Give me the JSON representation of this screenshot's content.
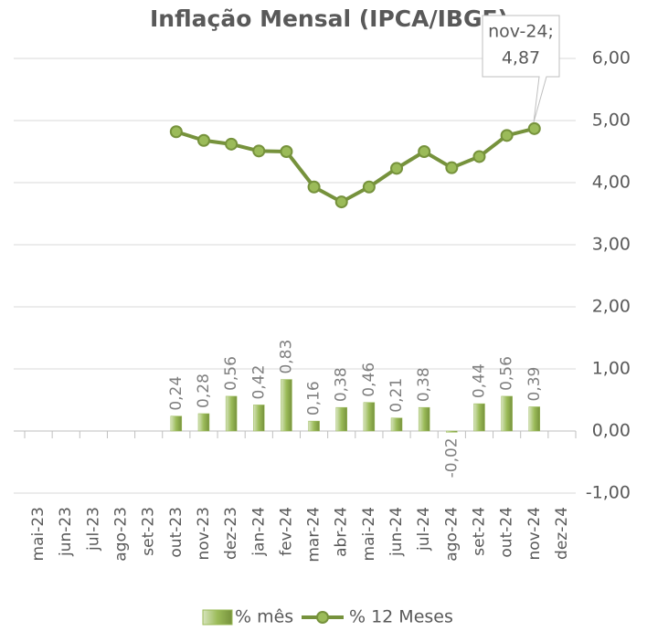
{
  "chart_data": {
    "type": "bar_line",
    "title": "Inflação Mensal (IPCA/IBGE)",
    "categories": [
      "mai-23",
      "jun-23",
      "jul-23",
      "ago-23",
      "set-23",
      "out-23",
      "nov-23",
      "dez-23",
      "jan-24",
      "fev-24",
      "mar-24",
      "abr-24",
      "mai-24",
      "jun-24",
      "jul-24",
      "ago-24",
      "set-24",
      "out-24",
      "nov-24",
      "dez-24"
    ],
    "series": [
      {
        "name": "% mês",
        "type": "bar",
        "color": "#9bbb59",
        "values": [
          null,
          null,
          null,
          null,
          null,
          0.24,
          0.28,
          0.56,
          0.42,
          0.83,
          0.16,
          0.38,
          0.46,
          0.21,
          0.38,
          -0.02,
          0.44,
          0.56,
          0.39,
          null
        ],
        "value_labels": [
          null,
          null,
          null,
          null,
          null,
          "0,24",
          "0,28",
          "0,56",
          "0,42",
          "0,83",
          "0,16",
          "0,38",
          "0,46",
          "0,21",
          "0,38",
          "-0,02",
          "0,44",
          "0,56",
          "0,39",
          null
        ]
      },
      {
        "name": "% 12 Meses",
        "type": "line",
        "color": "#76923c",
        "values": [
          null,
          null,
          null,
          null,
          null,
          4.82,
          4.68,
          4.62,
          4.51,
          4.5,
          3.93,
          3.69,
          3.93,
          4.23,
          4.5,
          4.24,
          4.42,
          4.76,
          4.87,
          null
        ]
      }
    ],
    "annotation": {
      "lines": [
        "nov-24;",
        "4,87"
      ]
    },
    "ylim": [
      -1,
      6
    ],
    "yticks": [
      {
        "value": -1,
        "label": "-1,00"
      },
      {
        "value": 0,
        "label": "0,00"
      },
      {
        "value": 1,
        "label": "1,00"
      },
      {
        "value": 2,
        "label": "2,00"
      },
      {
        "value": 3,
        "label": "3,00"
      },
      {
        "value": 4,
        "label": "4,00"
      },
      {
        "value": 5,
        "label": "5,00"
      },
      {
        "value": 6,
        "label": "6,00"
      }
    ],
    "grid": true,
    "legend": "bottom"
  }
}
